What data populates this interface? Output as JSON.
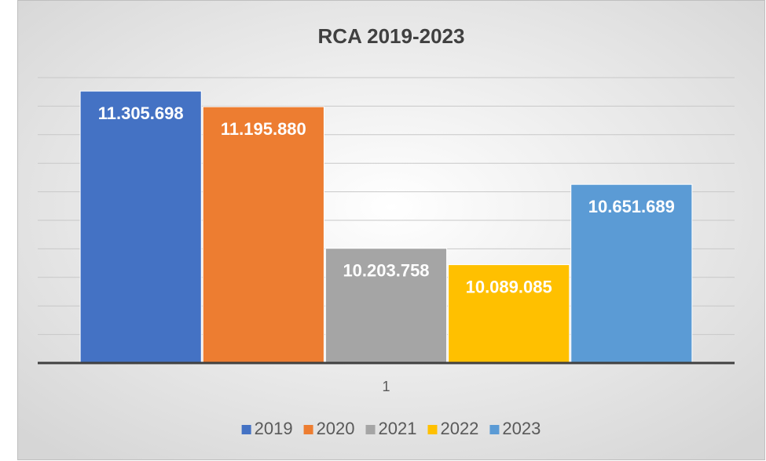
{
  "chart_data": {
    "type": "bar",
    "title": "RCA 2019-2023",
    "categories": [
      "1"
    ],
    "series": [
      {
        "name": "2019",
        "color": "#4472c4",
        "values": [
          11305698
        ],
        "value_labels": [
          "11.305.698"
        ]
      },
      {
        "name": "2020",
        "color": "#ed7d31",
        "values": [
          11195880
        ],
        "value_labels": [
          "11.195.880"
        ]
      },
      {
        "name": "2021",
        "color": "#a5a5a5",
        "values": [
          10203758
        ],
        "value_labels": [
          "10.203.758"
        ]
      },
      {
        "name": "2022",
        "color": "#ffc000",
        "values": [
          10089085
        ],
        "value_labels": [
          "10.089.085"
        ]
      },
      {
        "name": "2023",
        "color": "#5b9bd5",
        "values": [
          10651689
        ],
        "value_labels": [
          "10.651.689"
        ]
      }
    ],
    "ylim": [
      9400000,
      11400000
    ],
    "yticks": [
      9400000,
      9600000,
      9800000,
      10000000,
      10200000,
      10400000,
      10600000,
      10800000,
      11000000,
      11200000,
      11400000
    ],
    "grid": true,
    "legend": "bottom"
  }
}
